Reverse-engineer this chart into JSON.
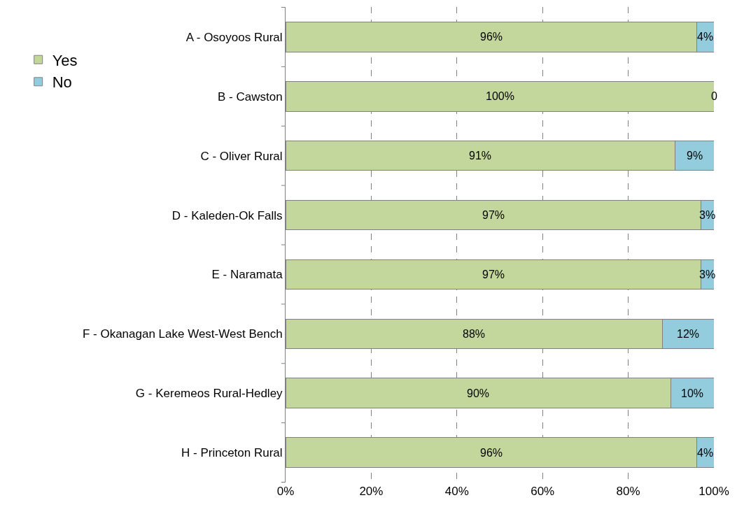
{
  "chart_data": {
    "type": "bar",
    "orientation": "horizontal",
    "stacked": true,
    "categories": [
      "A - Osoyoos Rural",
      "B - Cawston",
      "C - Oliver Rural",
      "D - Kaleden-Ok Falls",
      "E - Naramata",
      "F - Okanagan Lake West-West Bench",
      "G - Keremeos Rural-Hedley",
      "H - Princeton Rural"
    ],
    "series": [
      {
        "name": "Yes",
        "color": "#c3d69b",
        "values": [
          96,
          100,
          91,
          97,
          97,
          88,
          90,
          96
        ],
        "value_labels": [
          "96%",
          "100%",
          "91%",
          "97%",
          "97%",
          "88%",
          "90%",
          "96%"
        ]
      },
      {
        "name": "No",
        "color": "#93cddd",
        "values": [
          4,
          0,
          9,
          3,
          3,
          12,
          10,
          4
        ],
        "value_labels": [
          "4%",
          "0",
          "9%",
          "3%",
          "3%",
          "12%",
          "10%",
          "4%"
        ]
      }
    ],
    "xlim": [
      0,
      100
    ],
    "xticks": [
      {
        "value": 0,
        "label": "0%"
      },
      {
        "value": 20,
        "label": "20%"
      },
      {
        "value": 40,
        "label": "40%"
      },
      {
        "value": 60,
        "label": "60%"
      },
      {
        "value": 80,
        "label": "80%"
      },
      {
        "value": 100,
        "label": "100%"
      }
    ],
    "grid": "x",
    "legend": "left"
  }
}
